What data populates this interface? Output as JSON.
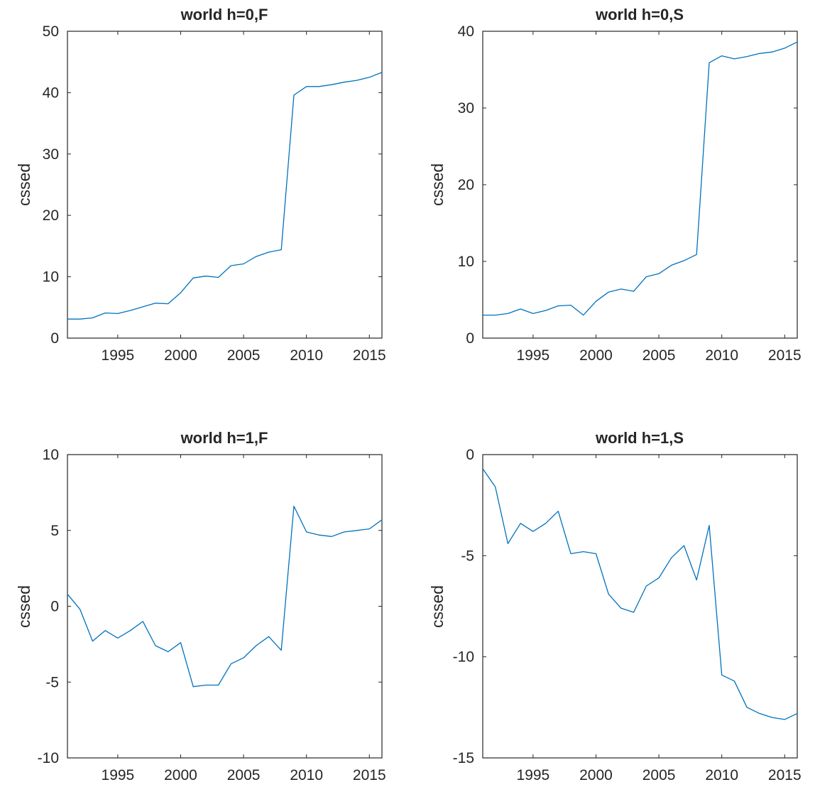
{
  "chart_data": [
    {
      "type": "line",
      "title": "world h=0,F",
      "xlabel": "",
      "ylabel": "cssed",
      "xlim": [
        1991,
        2016
      ],
      "ylim": [
        0,
        50
      ],
      "xticks": [
        1995,
        2000,
        2005,
        2010,
        2015
      ],
      "yticks": [
        0,
        10,
        20,
        30,
        40,
        50
      ],
      "ytick_labels": [
        "0",
        "10",
        "20",
        "30",
        "40",
        "50"
      ],
      "grid": false,
      "color": "#0072bd",
      "x": [
        1991,
        1992,
        1993,
        1994,
        1995,
        1996,
        1997,
        1998,
        1999,
        2000,
        2001,
        2002,
        2003,
        2004,
        2005,
        2006,
        2007,
        2008,
        2009,
        2010,
        2011,
        2012,
        2013,
        2014,
        2015,
        2016
      ],
      "y": [
        3.1,
        3.1,
        3.3,
        4.1,
        4.0,
        4.5,
        5.1,
        5.7,
        5.6,
        7.4,
        9.8,
        10.1,
        9.9,
        11.8,
        12.1,
        13.3,
        14.0,
        14.4,
        39.6,
        41.0,
        41.0,
        41.3,
        41.7,
        42.0,
        42.5,
        43.3
      ]
    },
    {
      "type": "line",
      "title": "world h=0,S",
      "xlabel": "",
      "ylabel": "cssed",
      "xlim": [
        1991,
        2016
      ],
      "ylim": [
        0,
        40
      ],
      "xticks": [
        1995,
        2000,
        2005,
        2010,
        2015
      ],
      "yticks": [
        0,
        10,
        20,
        30,
        40
      ],
      "ytick_labels": [
        "0",
        "10",
        "20",
        "30",
        "40"
      ],
      "grid": false,
      "color": "#0072bd",
      "x": [
        1991,
        1992,
        1993,
        1994,
        1995,
        1996,
        1997,
        1998,
        1999,
        2000,
        2001,
        2002,
        2003,
        2004,
        2005,
        2006,
        2007,
        2008,
        2009,
        2010,
        2011,
        2012,
        2013,
        2014,
        2015,
        2016
      ],
      "y": [
        3.0,
        3.0,
        3.2,
        3.8,
        3.2,
        3.6,
        4.2,
        4.3,
        3.0,
        4.8,
        6.0,
        6.4,
        6.1,
        8.0,
        8.4,
        9.5,
        10.1,
        10.9,
        35.9,
        36.8,
        36.4,
        36.7,
        37.1,
        37.3,
        37.8,
        38.6
      ]
    },
    {
      "type": "line",
      "title": "world h=1,F",
      "xlabel": "",
      "ylabel": "cssed",
      "xlim": [
        1991,
        2016
      ],
      "ylim": [
        -10,
        10
      ],
      "xticks": [
        1995,
        2000,
        2005,
        2010,
        2015
      ],
      "yticks": [
        -10,
        -5,
        0,
        5,
        10
      ],
      "ytick_labels": [
        "-10",
        "-5",
        "0",
        "5",
        "10"
      ],
      "grid": false,
      "color": "#0072bd",
      "x": [
        1991,
        1992,
        1993,
        1994,
        1995,
        1996,
        1997,
        1998,
        1999,
        2000,
        2001,
        2002,
        2003,
        2004,
        2005,
        2006,
        2007,
        2008,
        2009,
        2010,
        2011,
        2012,
        2013,
        2014,
        2015,
        2016
      ],
      "y": [
        0.8,
        -0.2,
        -2.3,
        -1.6,
        -2.1,
        -1.6,
        -1.0,
        -2.6,
        -3.0,
        -2.4,
        -5.3,
        -5.2,
        -5.2,
        -3.8,
        -3.4,
        -2.6,
        -2.0,
        -2.9,
        6.6,
        4.9,
        4.7,
        4.6,
        4.9,
        5.0,
        5.1,
        5.7
      ]
    },
    {
      "type": "line",
      "title": "world h=1,S",
      "xlabel": "",
      "ylabel": "cssed",
      "xlim": [
        1991,
        2016
      ],
      "ylim": [
        -15,
        0
      ],
      "xticks": [
        1995,
        2000,
        2005,
        2010,
        2015
      ],
      "yticks": [
        -15,
        -10,
        -5,
        0
      ],
      "ytick_labels": [
        "-15",
        "-10",
        "-5",
        "0"
      ],
      "grid": false,
      "color": "#0072bd",
      "x": [
        1991,
        1992,
        1993,
        1994,
        1995,
        1996,
        1997,
        1998,
        1999,
        2000,
        2001,
        2002,
        2003,
        2004,
        2005,
        2006,
        2007,
        2008,
        2009,
        2010,
        2011,
        2012,
        2013,
        2014,
        2015,
        2016
      ],
      "y": [
        -0.7,
        -1.6,
        -4.4,
        -3.4,
        -3.8,
        -3.4,
        -2.8,
        -4.9,
        -4.8,
        -4.9,
        -6.9,
        -7.6,
        -7.8,
        -6.5,
        -6.1,
        -5.1,
        -4.5,
        -6.2,
        -3.5,
        -10.9,
        -11.2,
        -12.5,
        -12.8,
        -13.0,
        -13.1,
        -12.8
      ]
    }
  ]
}
